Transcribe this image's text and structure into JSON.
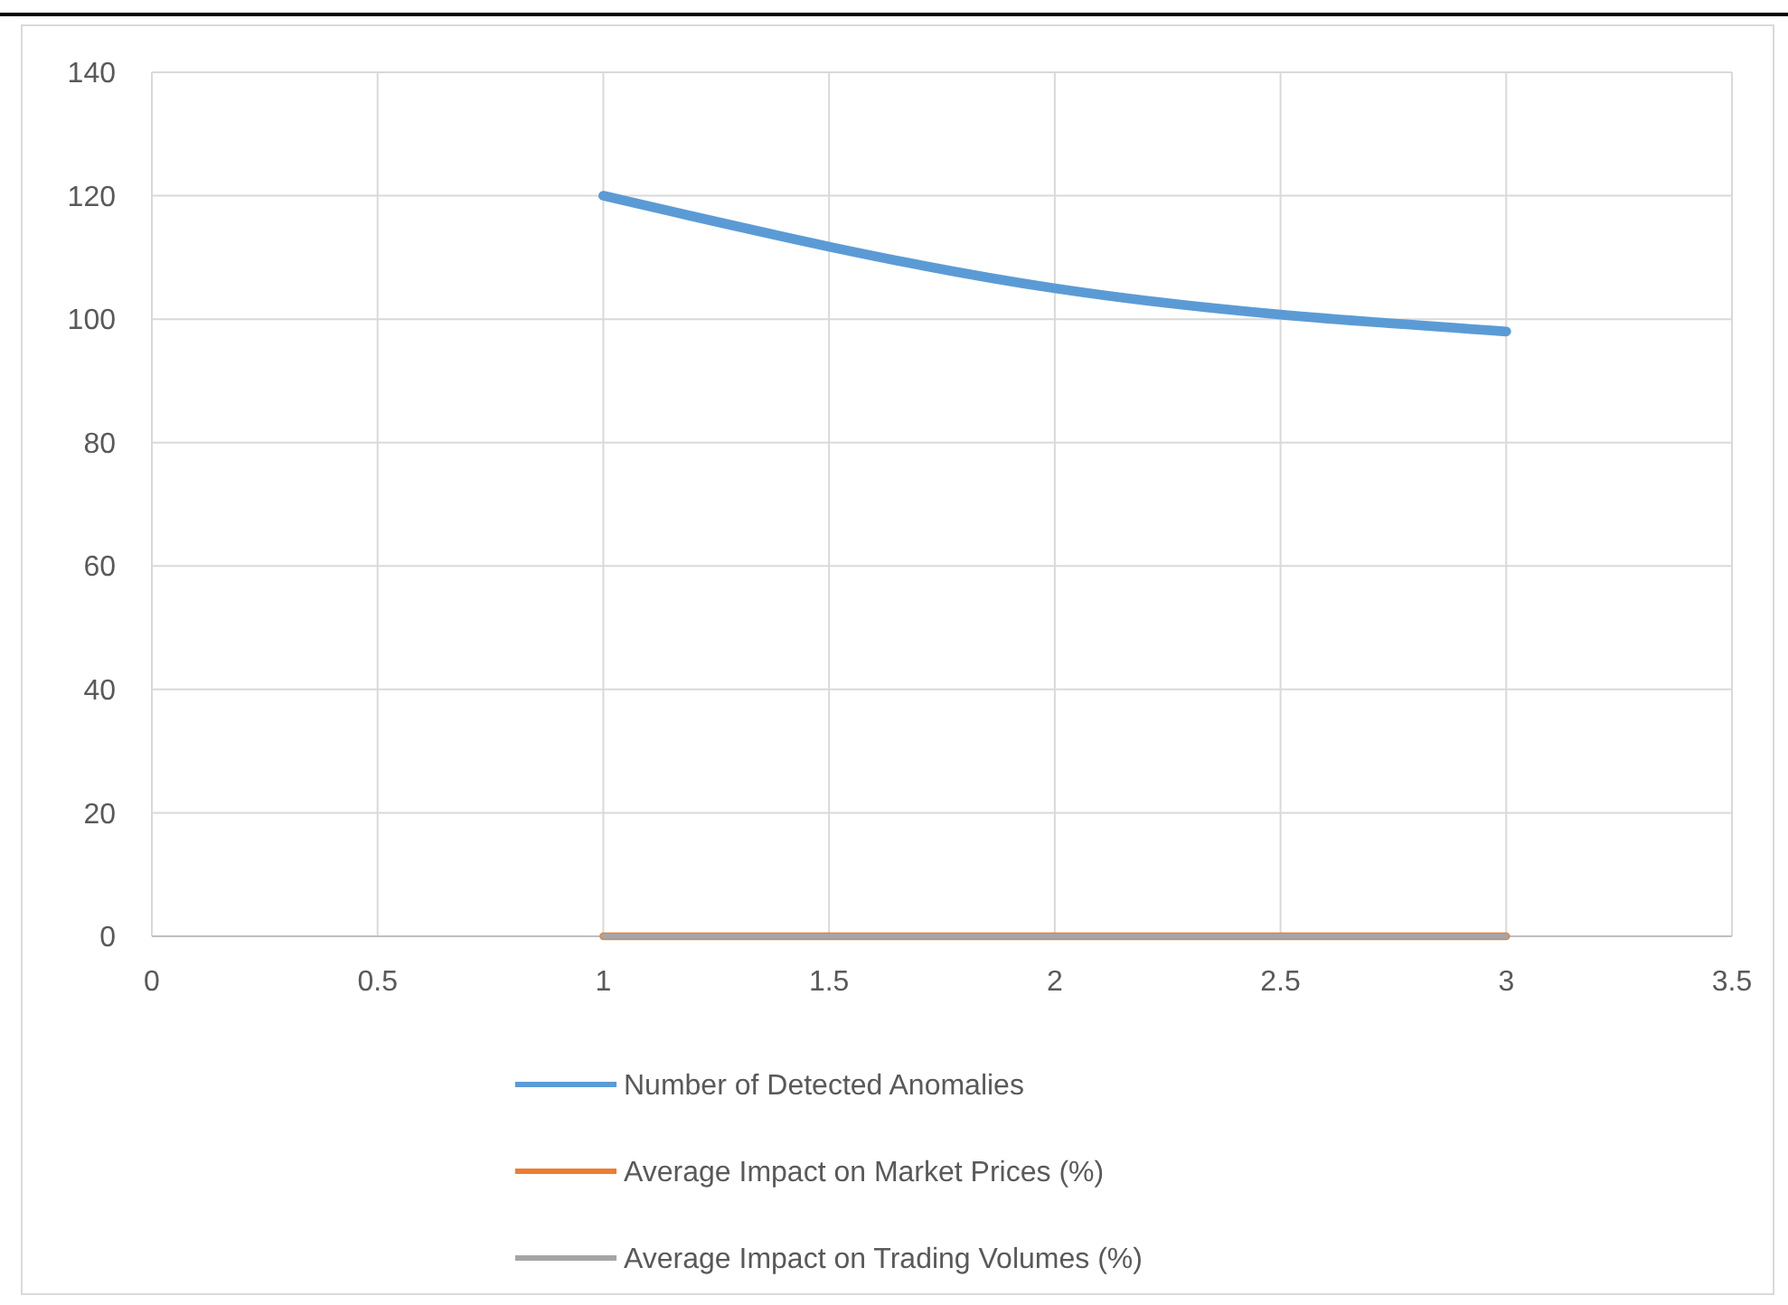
{
  "chart_data": {
    "type": "line",
    "x": [
      1,
      2,
      3
    ],
    "series": [
      {
        "name": "Number of Detected Anomalies",
        "color": "#5b9bd5",
        "values": [
          120,
          105,
          98
        ]
      },
      {
        "name": "Average Impact on Market Prices (%)",
        "color": "#ed7d31",
        "values": [
          0,
          0,
          0
        ]
      },
      {
        "name": "Average Impact on Trading Volumes (%)",
        "color": "#a5a5a5",
        "values": [
          0,
          0,
          0
        ]
      }
    ],
    "xlim": [
      0,
      3.5
    ],
    "xticks": [
      0,
      0.5,
      1,
      1.5,
      2,
      2.5,
      3,
      3.5
    ],
    "ylim": [
      0,
      140
    ],
    "yticks": [
      0,
      20,
      40,
      60,
      80,
      100,
      120,
      140
    ],
    "grid": true,
    "legend": "bottom",
    "marker": "none",
    "line_style": "solid"
  }
}
